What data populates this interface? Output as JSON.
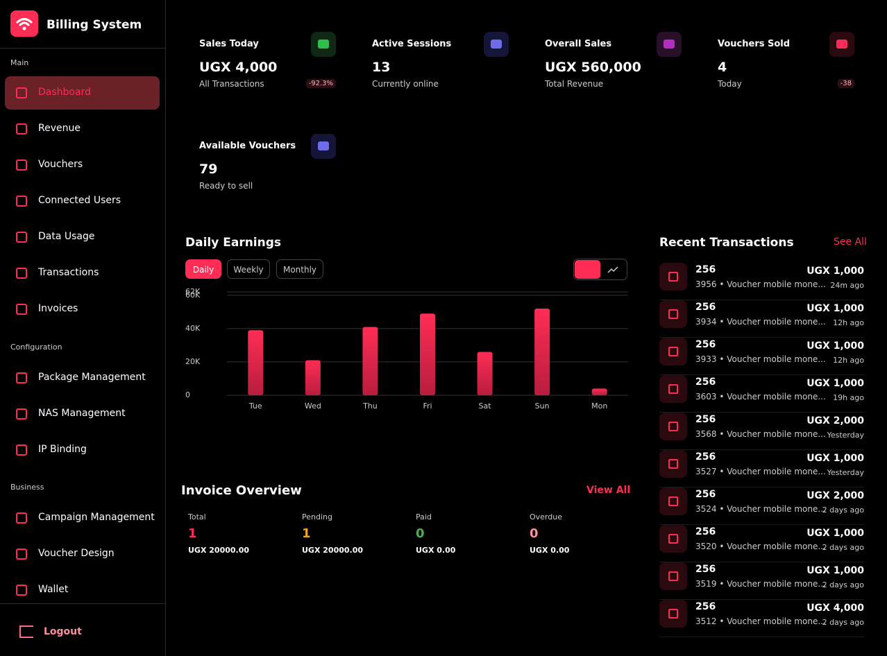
{
  "sidebar": {
    "brand": "Billing System",
    "sections": [
      {
        "title": "Main",
        "items": [
          "Dashboard",
          "Revenue",
          "Vouchers",
          "Connected Users",
          "Data Usage",
          "Transactions",
          "Invoices"
        ]
      },
      {
        "title": "Configuration",
        "items": [
          "Package Management",
          "NAS Management",
          "IP Binding"
        ]
      },
      {
        "title": "Business",
        "items": [
          "Campaign Management",
          "Voucher Design",
          "Wallet"
        ]
      }
    ],
    "logout": "Logout"
  },
  "stats": [
    {
      "label": "Sales Today",
      "value": "UGX 4,000",
      "sub": "All Transactions",
      "change": "-92.3%"
    },
    {
      "label": "Active Sessions",
      "value": "13",
      "sub": "Currently online"
    },
    {
      "label": "Overall Sales",
      "value": "UGX 560,000",
      "sub": "Total Revenue"
    },
    {
      "label": "Vouchers Sold",
      "value": "4",
      "sub": "Today",
      "change": "-38"
    },
    {
      "label": "Available Vouchers",
      "value": "79",
      "sub": "Ready to sell"
    }
  ],
  "tabs": [
    "Daily",
    "Weekly",
    "Monthly"
  ],
  "chart_data": {
    "type": "bar",
    "title": "Daily Earnings",
    "categories": [
      "Tue",
      "Wed",
      "Thu",
      "Fri",
      "Sat",
      "Sun",
      "Mon"
    ],
    "values": [
      39000,
      21000,
      41000,
      49000,
      26000,
      52000,
      4000
    ],
    "color": "#ff2d55",
    "ylim": [
      0,
      62000
    ],
    "yticks": [
      0,
      {
        "value": 20000,
        "label": "20K"
      },
      {
        "value": 40000,
        "label": "40K"
      },
      {
        "value": 60000,
        "label": "60K"
      },
      {
        "value": 62000,
        "label": "62K"
      }
    ],
    "grid": true
  },
  "invoices": {
    "title": "Invoice Overview",
    "view_all": "View All",
    "items": [
      {
        "label": "Total",
        "count": "1",
        "amount": "UGX 20000.00"
      },
      {
        "label": "Pending",
        "count": "1",
        "amount": "UGX 20000.00"
      },
      {
        "label": "Paid",
        "count": "0",
        "amount": "UGX 0.00"
      },
      {
        "label": "Overdue",
        "count": "0",
        "amount": "UGX 0.00"
      }
    ]
  },
  "transactions": {
    "title": "Recent Transactions",
    "see_all": "See All",
    "rows": [
      {
        "phone": "256",
        "desc": "3956 • Voucher mobile mone...",
        "amount": "UGX 1,000",
        "time": "24m ago"
      },
      {
        "phone": "256",
        "desc": "3934 • Voucher mobile mone...",
        "amount": "UGX 1,000",
        "time": "12h ago"
      },
      {
        "phone": "256",
        "desc": "3933 • Voucher mobile mone...",
        "amount": "UGX 1,000",
        "time": "12h ago"
      },
      {
        "phone": "256",
        "desc": "3603 • Voucher mobile mone...",
        "amount": "UGX 1,000",
        "time": "19h ago"
      },
      {
        "phone": "256",
        "desc": "3568 • Voucher mobile mone...",
        "amount": "UGX 2,000",
        "time": "Yesterday"
      },
      {
        "phone": "256",
        "desc": "3527 • Voucher mobile mone...",
        "amount": "UGX 1,000",
        "time": "Yesterday"
      },
      {
        "phone": "256",
        "desc": "3524 • Voucher mobile mone...",
        "amount": "UGX 2,000",
        "time": "2 days ago"
      },
      {
        "phone": "256",
        "desc": "3520 • Voucher mobile mone...",
        "amount": "UGX 1,000",
        "time": "2 days ago"
      },
      {
        "phone": "256",
        "desc": "3519 • Voucher mobile mone...",
        "amount": "UGX 1,000",
        "time": "2 days ago"
      },
      {
        "phone": "256",
        "desc": "3512 • Voucher mobile mone...",
        "amount": "UGX 4,000",
        "time": "2 days ago"
      }
    ]
  }
}
